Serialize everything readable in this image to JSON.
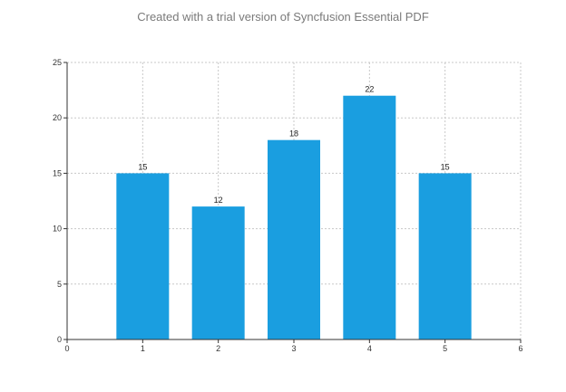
{
  "watermark": "Created with a trial version of Syncfusion Essential PDF",
  "chart_data": {
    "type": "bar",
    "x": [
      1,
      2,
      3,
      4,
      5
    ],
    "values": [
      15,
      12,
      18,
      22,
      15
    ],
    "data_labels": [
      "15",
      "12",
      "18",
      "22",
      "15"
    ],
    "xlim": [
      0,
      6
    ],
    "ylim": [
      0,
      25
    ],
    "x_ticks": [
      "0",
      "1",
      "2",
      "3",
      "4",
      "5",
      "6"
    ],
    "y_ticks": [
      "0",
      "5",
      "10",
      "15",
      "20",
      "25"
    ],
    "grid": true,
    "legend": "none",
    "title": "",
    "xlabel": "",
    "ylabel": "",
    "bar_color": "#1a9ee0"
  }
}
